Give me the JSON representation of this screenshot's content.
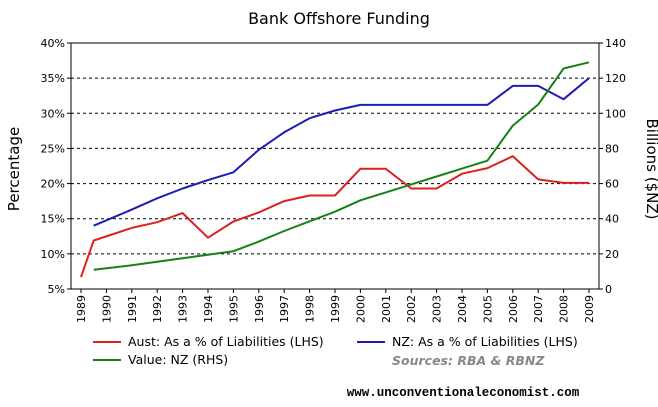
{
  "chart_data": {
    "type": "line",
    "title": "Bank Offshore Funding",
    "xlabel": "",
    "ylabel": "Percentage",
    "ylabel_right": "Billions ($NZ)",
    "x": [
      "1989",
      "1990",
      "1991",
      "1992",
      "1993",
      "1994",
      "1995",
      "1996",
      "1997",
      "1998",
      "1999",
      "2000",
      "2001",
      "2002",
      "2003",
      "2004",
      "2005",
      "2006",
      "2007",
      "2008",
      "2009"
    ],
    "ylim": [
      5,
      40
    ],
    "ylim_right": [
      0,
      140
    ],
    "yticks": [
      "5%",
      "10%",
      "15%",
      "20%",
      "25%",
      "30%",
      "35%",
      "40%"
    ],
    "yticks_right": [
      "0",
      "20",
      "40",
      "60",
      "80",
      "100",
      "120",
      "140"
    ],
    "grid": true,
    "series": [
      {
        "name": "Aust: As a % of Liabilities (LHS)",
        "axis": "left",
        "color": "#dd2020",
        "points": [
          [
            1989,
            6.7
          ],
          [
            1989.5,
            11.9
          ],
          [
            1991,
            13.7
          ],
          [
            1992,
            14.5
          ],
          [
            1993,
            15.8
          ],
          [
            1994,
            12.3
          ],
          [
            1995,
            14.6
          ],
          [
            1996,
            15.9
          ],
          [
            1997,
            17.5
          ],
          [
            1998,
            18.3
          ],
          [
            1999,
            18.3
          ],
          [
            2000,
            22.1
          ],
          [
            2001,
            22.1
          ],
          [
            2002,
            19.3
          ],
          [
            2003,
            19.3
          ],
          [
            2004,
            21.4
          ],
          [
            2005,
            22.2
          ],
          [
            2006,
            23.9
          ],
          [
            2007,
            20.6
          ],
          [
            2008,
            20.1
          ],
          [
            2009,
            20.1
          ]
        ]
      },
      {
        "name": "NZ: As a % of Liabilities (LHS)",
        "axis": "left",
        "color": "#1c1cb4",
        "points": [
          [
            1989.5,
            14.0
          ],
          [
            1991,
            16.3
          ],
          [
            1992,
            17.9
          ],
          [
            1993,
            19.3
          ],
          [
            1994,
            20.5
          ],
          [
            1995,
            21.6
          ],
          [
            1996,
            24.8
          ],
          [
            1997,
            27.3
          ],
          [
            1998,
            29.3
          ],
          [
            1999,
            30.4
          ],
          [
            2000,
            31.2
          ],
          [
            2001,
            31.2
          ],
          [
            2002,
            31.2
          ],
          [
            2003,
            31.2
          ],
          [
            2004,
            31.2
          ],
          [
            2005,
            31.2
          ],
          [
            2006,
            33.9
          ],
          [
            2007,
            33.9
          ],
          [
            2008,
            32.0
          ],
          [
            2009,
            35.0
          ]
        ]
      },
      {
        "name": "Value: NZ (RHS)",
        "axis": "right",
        "color": "#168216",
        "points": [
          [
            1989.5,
            11
          ],
          [
            1991,
            13.5
          ],
          [
            1992,
            15.5
          ],
          [
            1993,
            17.5
          ],
          [
            1994,
            19.5
          ],
          [
            1995,
            21.5
          ],
          [
            1996,
            27
          ],
          [
            1997,
            33
          ],
          [
            1998,
            38.5
          ],
          [
            1999,
            44
          ],
          [
            2000,
            50.5
          ],
          [
            2001,
            55
          ],
          [
            2002,
            59.5
          ],
          [
            2003,
            64
          ],
          [
            2004,
            68.5
          ],
          [
            2005,
            73
          ],
          [
            2006,
            93
          ],
          [
            2007,
            105
          ],
          [
            2008,
            125.5
          ],
          [
            2009,
            129
          ]
        ]
      }
    ],
    "legend_placement": "bottom"
  },
  "source_note": "Sources: RBA & RBNZ",
  "website": "www.unconventionaleconomist.com"
}
